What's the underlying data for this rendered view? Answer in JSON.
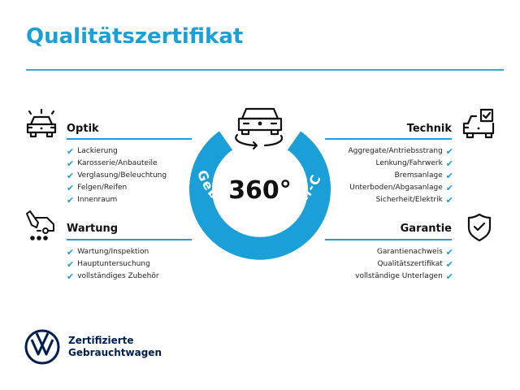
{
  "title": "Qualitätszertifikat",
  "center": {
    "number": "360°",
    "ring_text": "Gebrauchtwagen-Check"
  },
  "sections": {
    "optik": {
      "heading": "Optik",
      "items": [
        "Lackierung",
        "Karosserie/Anbauteile",
        "Verglasung/Beleuchtung",
        "Felgen/Reifen",
        "Innenraum"
      ]
    },
    "wartung": {
      "heading": "Wartung",
      "items": [
        "Wartung/Inspektion",
        "Hauptuntersuchung",
        "vollständiges Zubehör"
      ]
    },
    "technik": {
      "heading": "Technik",
      "items": [
        "Aggregate/Antriebsstrang",
        "Lenkung/Fahrwerk",
        "Bremsanlage",
        "Unterboden/Abgasanlage",
        "Sicherheit/Elektrik"
      ]
    },
    "garantie": {
      "heading": "Garantie",
      "items": [
        "Garantienachweis",
        "Qualitätszertifikat",
        "vollständige Unterlagen"
      ]
    }
  },
  "checkmark": "✔",
  "logo": {
    "line1": "Zertifizierte",
    "line2": "Gebrauchtwagen"
  },
  "colors": {
    "accent": "#1a9fd8",
    "brand_navy": "#001e50"
  }
}
